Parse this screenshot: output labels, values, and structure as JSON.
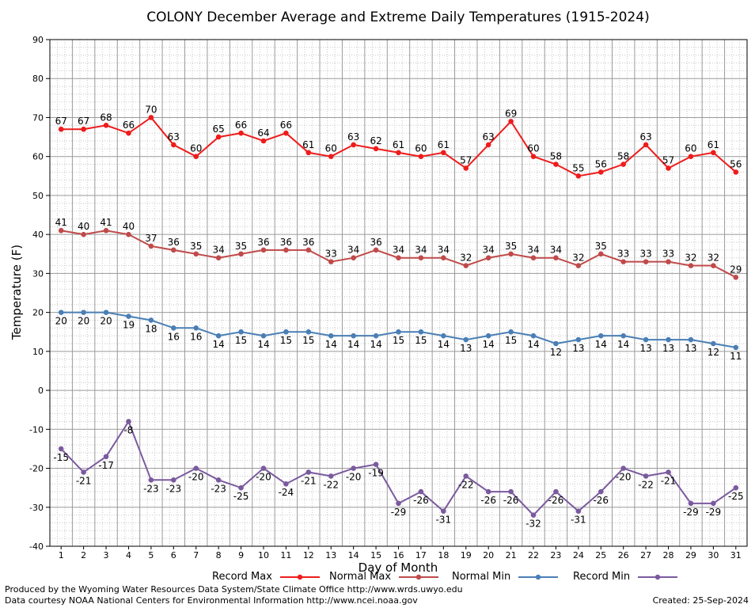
{
  "chart_data": {
    "type": "line",
    "title": "COLONY December Average and Extreme Daily Temperatures (1915-2024)",
    "xlabel": "Day of Month",
    "ylabel": "Temperature (F)",
    "ylim": [
      -40,
      90
    ],
    "yticks": [
      -40,
      -30,
      -20,
      -10,
      0,
      10,
      20,
      30,
      40,
      50,
      60,
      70,
      80,
      90
    ],
    "x": [
      1,
      2,
      3,
      4,
      5,
      6,
      7,
      8,
      9,
      10,
      11,
      12,
      13,
      14,
      15,
      16,
      17,
      18,
      19,
      20,
      21,
      22,
      23,
      24,
      25,
      26,
      27,
      28,
      29,
      30,
      31
    ],
    "grid": true,
    "legend_position": "bottom",
    "series": [
      {
        "name": "Record Max",
        "color": "#ee1c1c",
        "label_pos": "above",
        "values": [
          67,
          67,
          68,
          66,
          70,
          63,
          60,
          65,
          66,
          64,
          66,
          61,
          60,
          63,
          62,
          61,
          60,
          61,
          57,
          63,
          69,
          60,
          58,
          55,
          56,
          58,
          63,
          57,
          60,
          61,
          56
        ]
      },
      {
        "name": "Normal Max",
        "color": "#c04a4a",
        "label_pos": "above",
        "values": [
          41,
          40,
          41,
          40,
          37,
          36,
          35,
          34,
          35,
          36,
          36,
          36,
          33,
          34,
          36,
          34,
          34,
          34,
          32,
          34,
          35,
          34,
          34,
          32,
          35,
          33,
          33,
          33,
          32,
          32,
          29
        ]
      },
      {
        "name": "Normal Min",
        "color": "#4a7fb5",
        "label_pos": "below",
        "values": [
          20,
          20,
          20,
          19,
          18,
          16,
          16,
          14,
          15,
          14,
          15,
          15,
          14,
          14,
          14,
          15,
          15,
          14,
          13,
          14,
          15,
          14,
          12,
          13,
          14,
          14,
          13,
          13,
          13,
          12,
          11
        ]
      },
      {
        "name": "Record Min",
        "color": "#7a5a9e",
        "label_pos": "below",
        "values": [
          -15,
          -21,
          -17,
          -8,
          -23,
          -23,
          -20,
          -23,
          -25,
          -20,
          -24,
          -21,
          -22,
          -20,
          -19,
          -29,
          -26,
          -31,
          -22,
          -26,
          -26,
          -32,
          -26,
          -31,
          -26,
          -20,
          -22,
          -21,
          -29,
          -29,
          -25
        ]
      }
    ]
  },
  "footer": {
    "line1": "Produced by the Wyoming Water Resources Data System/State Climate Office http://www.wrds.uwyo.edu",
    "line2": "Data courtesy NOAA National Centers for Environmental Information http://www.ncei.noaa.gov",
    "created": "Created:  25-Sep-2024"
  }
}
